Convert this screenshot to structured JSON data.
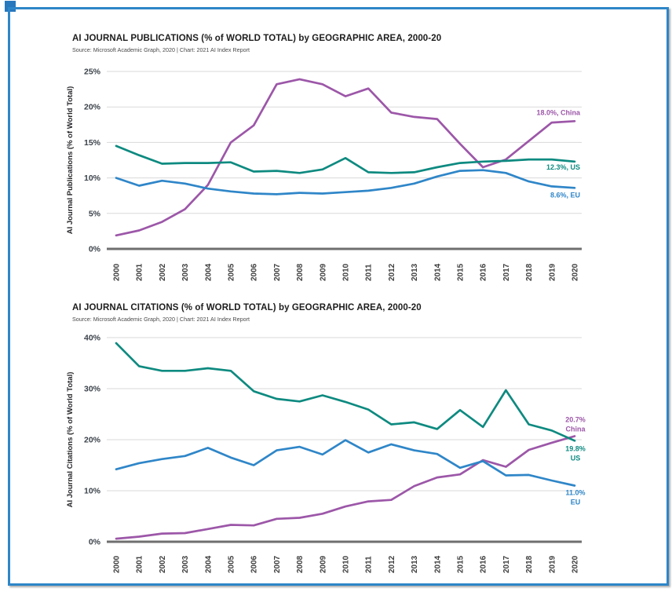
{
  "page": {
    "background": "#FFFFFF",
    "frame_color": "#2E86C8",
    "corner_square_color": "#2878BE"
  },
  "chart_data": [
    {
      "type": "line",
      "title": "AI JOURNAL PUBLICATIONS (% of WORLD TOTAL) by GEOGRAPHIC AREA, 2000-20",
      "source": "Source: Microsoft Academic Graph, 2020 | Chart: 2021 AI Index Report",
      "ylabel": "AI Journal Publications (% of World Total)",
      "xlabel": "",
      "ylim": [
        0,
        25
      ],
      "grid": true,
      "legend_position": "end-of-line labels at right",
      "yticks": [
        {
          "v": 0,
          "label": "0%"
        },
        {
          "v": 5,
          "label": "5%"
        },
        {
          "v": 10,
          "label": "10%"
        },
        {
          "v": 15,
          "label": "15%"
        },
        {
          "v": 20,
          "label": "20%"
        },
        {
          "v": 25,
          "label": "25%"
        }
      ],
      "x": [
        2000,
        2001,
        2002,
        2003,
        2004,
        2005,
        2006,
        2007,
        2008,
        2009,
        2010,
        2011,
        2012,
        2013,
        2014,
        2015,
        2016,
        2017,
        2018,
        2019,
        2020
      ],
      "series": [
        {
          "name": "China",
          "color": "#9C57A8",
          "end_label": [
            "18.0%, China"
          ],
          "values": [
            1.9,
            2.6,
            3.8,
            5.6,
            9.0,
            15.0,
            17.4,
            23.2,
            23.9,
            23.2,
            21.5,
            22.6,
            19.2,
            18.6,
            18.3,
            14.8,
            11.5,
            12.6,
            15.2,
            17.8,
            18.0
          ]
        },
        {
          "name": "US",
          "color": "#0E8A80",
          "end_label": [
            "12.3%, US"
          ],
          "values": [
            14.5,
            13.2,
            12.0,
            12.1,
            12.1,
            12.2,
            10.9,
            11.0,
            10.7,
            11.2,
            12.8,
            10.8,
            10.7,
            10.8,
            11.5,
            12.1,
            12.3,
            12.4,
            12.6,
            12.6,
            12.3
          ]
        },
        {
          "name": "EU",
          "color": "#2F86C8",
          "end_label": [
            "8.6%, EU"
          ],
          "values": [
            10.0,
            8.9,
            9.6,
            9.2,
            8.5,
            8.1,
            7.8,
            7.7,
            7.9,
            7.8,
            8.0,
            8.2,
            8.6,
            9.2,
            10.2,
            11.0,
            11.1,
            10.7,
            9.5,
            8.8,
            8.6
          ]
        }
      ]
    },
    {
      "type": "line",
      "title": "AI JOURNAL CITATIONS (% of WORLD TOTAL) by GEOGRAPHIC AREA, 2000-20",
      "source": "Source: Microsoft Academic Graph, 2020 | Chart: 2021 AI Index Report",
      "ylabel": "AI Journal Citations (% of World Total)",
      "xlabel": "",
      "ylim": [
        0,
        40
      ],
      "grid": true,
      "legend_position": "end-of-line labels at right",
      "yticks": [
        {
          "v": 0,
          "label": "0%"
        },
        {
          "v": 10,
          "label": "10%"
        },
        {
          "v": 20,
          "label": "20%"
        },
        {
          "v": 30,
          "label": "30%"
        },
        {
          "v": 40,
          "label": "40%"
        }
      ],
      "x": [
        2000,
        2001,
        2002,
        2003,
        2004,
        2005,
        2006,
        2007,
        2008,
        2009,
        2010,
        2011,
        2012,
        2013,
        2014,
        2015,
        2016,
        2017,
        2018,
        2019,
        2020
      ],
      "series": [
        {
          "name": "China",
          "color": "#9C57A8",
          "end_label": [
            "20.7%",
            "China"
          ],
          "values": [
            0.6,
            1.0,
            1.6,
            1.7,
            2.5,
            3.3,
            3.2,
            4.5,
            4.7,
            5.5,
            6.9,
            7.9,
            8.2,
            10.9,
            12.6,
            13.2,
            16.0,
            14.7,
            18.0,
            19.4,
            20.7
          ]
        },
        {
          "name": "US",
          "color": "#0E8A80",
          "end_label": [
            "19.8%",
            "US"
          ],
          "values": [
            38.9,
            34.4,
            33.5,
            33.5,
            34.0,
            33.5,
            29.5,
            28.0,
            27.5,
            28.7,
            27.4,
            25.9,
            23.0,
            23.4,
            22.1,
            25.8,
            22.5,
            29.7,
            23.0,
            21.8,
            19.8
          ]
        },
        {
          "name": "EU",
          "color": "#2F86C8",
          "end_label": [
            "11.0%",
            "EU"
          ],
          "values": [
            14.2,
            15.4,
            16.2,
            16.8,
            18.4,
            16.5,
            15.0,
            17.9,
            18.6,
            17.1,
            19.9,
            17.5,
            19.1,
            17.9,
            17.2,
            14.5,
            15.8,
            13.0,
            13.1,
            12.0,
            11.0
          ]
        }
      ]
    }
  ]
}
